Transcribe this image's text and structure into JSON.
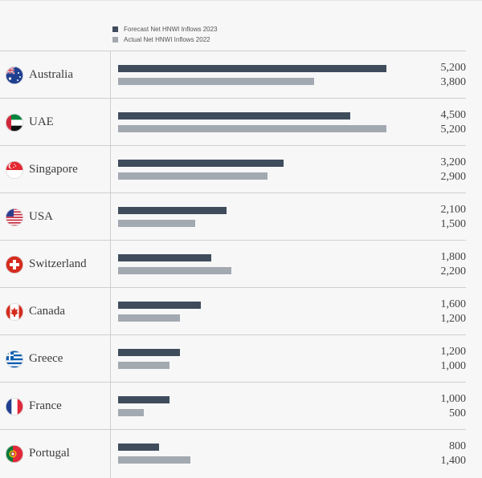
{
  "legend": {
    "forecast_label": "Forecast Net HNWI Inflows 2023",
    "actual_label": "Actual Net HNWI Inflows 2022",
    "forecast_color": "#3f4c5c",
    "actual_color": "#a3a9b0"
  },
  "chart_data": {
    "type": "bar",
    "orientation": "horizontal",
    "categories": [
      "Australia",
      "UAE",
      "Singapore",
      "USA",
      "Switzerland",
      "Canada",
      "Greece",
      "France",
      "Portugal"
    ],
    "series": [
      {
        "name": "Forecast Net HNWI Inflows 2023",
        "values": [
          5200,
          4500,
          3200,
          2100,
          1800,
          1600,
          1200,
          1000,
          800
        ]
      },
      {
        "name": "Actual Net HNWI Inflows 2022",
        "values": [
          3800,
          5200,
          2900,
          1500,
          2200,
          1200,
          1000,
          500,
          1400
        ]
      }
    ],
    "value_labels": {
      "forecast": [
        "5,200",
        "4,500",
        "3,200",
        "2,100",
        "1,800",
        "1,600",
        "1,200",
        "1,000",
        "800"
      ],
      "actual": [
        "3,800",
        "5,200",
        "2,900",
        "1,500",
        "2,200",
        "1,200",
        "1,000",
        "500",
        "1,400"
      ]
    },
    "xlim": [
      0,
      5200
    ],
    "legend_position": "top-left"
  },
  "flags": [
    "australia-flag-icon",
    "uae-flag-icon",
    "singapore-flag-icon",
    "usa-flag-icon",
    "switzerland-flag-icon",
    "canada-flag-icon",
    "greece-flag-icon",
    "france-flag-icon",
    "portugal-flag-icon"
  ]
}
